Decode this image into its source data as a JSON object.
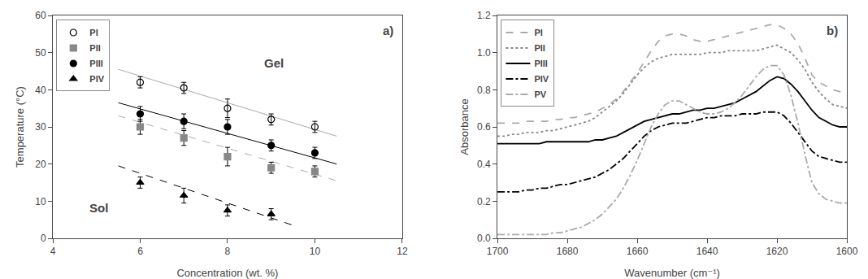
{
  "chart_data": [
    {
      "type": "scatter",
      "title": "a)",
      "x_label": "Concentration (wt. %)",
      "y_label": "Temperature (°C)",
      "xlim": [
        4,
        12
      ],
      "ylim": [
        0,
        60
      ],
      "xticks": [
        4,
        6,
        8,
        10,
        12
      ],
      "yticks": [
        0,
        10,
        20,
        30,
        40,
        50,
        60
      ],
      "grid": false,
      "legend": "upper left",
      "series": [
        {
          "name": "PI",
          "color": "black",
          "marker": "circle-open",
          "x": [
            6,
            7,
            8,
            9,
            10
          ],
          "values": [
            42.0,
            40.5,
            35.0,
            32.0,
            30.0
          ],
          "yerr": [
            1.5,
            1.5,
            2.5,
            1.5,
            1.5
          ],
          "trendline": {
            "x": [
              5.5,
              10.5
            ],
            "values": [
              45.5,
              27.5
            ],
            "color": "#aaaaaa",
            "line_style": "solid"
          }
        },
        {
          "name": "PII",
          "color": "#888888",
          "marker": "square",
          "x": [
            6,
            7,
            8,
            9,
            10
          ],
          "values": [
            30.0,
            27.0,
            22.0,
            19.0,
            18.0
          ],
          "yerr": [
            2.0,
            2.0,
            2.5,
            1.5,
            1.5
          ],
          "trendline": {
            "x": [
              5.5,
              10.5
            ],
            "values": [
              33.0,
              15.5
            ],
            "color": "#aaaaaa",
            "line_style": "dash"
          }
        },
        {
          "name": "PIII",
          "color": "black",
          "marker": "circle",
          "x": [
            6,
            7,
            8,
            9,
            10
          ],
          "values": [
            33.5,
            31.5,
            30.0,
            25.0,
            23.0
          ],
          "yerr": [
            2.0,
            2.0,
            2.0,
            1.5,
            1.5
          ],
          "trendline": {
            "x": [
              5.5,
              10.5
            ],
            "values": [
              36.5,
              20.0
            ],
            "color": "black",
            "line_style": "solid"
          }
        },
        {
          "name": "PIV",
          "color": "black",
          "marker": "triangle-up",
          "x": [
            6,
            7,
            8,
            9
          ],
          "values": [
            15.0,
            11.5,
            7.5,
            6.5
          ],
          "yerr": [
            1.5,
            2.0,
            1.5,
            1.5
          ],
          "trendline": {
            "x": [
              5.5,
              9.5
            ],
            "values": [
              19.5,
              3.5
            ],
            "color": "black",
            "line_style": "dash"
          }
        }
      ],
      "annotations": [
        {
          "text": "Gel",
          "x": 8.8,
          "y": 45.0
        },
        {
          "text": "Sol",
          "x": 4.8,
          "y": 6.0
        }
      ]
    },
    {
      "type": "line",
      "title": "b)",
      "x_label": "Wavenumber (cm⁻¹)",
      "y_label": "Absorbance",
      "xlim": [
        1700,
        1600
      ],
      "ylim": [
        0,
        1.2
      ],
      "xticks": [
        1700,
        1680,
        1660,
        1640,
        1620,
        1600
      ],
      "yticks": [
        {
          "value": 0,
          "label": "0.0"
        },
        0.2,
        0.4,
        0.6,
        0.8,
        {
          "value": 1,
          "label": "1.0"
        },
        1.2
      ],
      "grid": false,
      "legend": "upper left",
      "x": [
        1700,
        1698,
        1696,
        1694,
        1692,
        1690,
        1688,
        1686,
        1684,
        1682,
        1680,
        1678,
        1676,
        1674,
        1672,
        1670,
        1668,
        1666,
        1664,
        1662,
        1660,
        1658,
        1656,
        1654,
        1652,
        1650,
        1648,
        1646,
        1644,
        1642,
        1640,
        1638,
        1636,
        1634,
        1632,
        1630,
        1628,
        1626,
        1624,
        1622,
        1620,
        1618,
        1616,
        1614,
        1612,
        1610,
        1608,
        1606,
        1604,
        1602,
        1600
      ],
      "series": [
        {
          "name": "PI",
          "color": "#aaaaaa",
          "line_style": "dash",
          "values": [
            0.62,
            0.62,
            0.62,
            0.62,
            0.63,
            0.63,
            0.63,
            0.63,
            0.64,
            0.64,
            0.65,
            0.65,
            0.66,
            0.67,
            0.68,
            0.7,
            0.72,
            0.75,
            0.79,
            0.84,
            0.89,
            0.95,
            1.01,
            1.06,
            1.09,
            1.1,
            1.1,
            1.09,
            1.07,
            1.06,
            1.06,
            1.07,
            1.08,
            1.09,
            1.1,
            1.11,
            1.12,
            1.13,
            1.14,
            1.15,
            1.15,
            1.13,
            1.1,
            1.05,
            0.97,
            0.88,
            0.84,
            0.82,
            0.8,
            0.79,
            0.78
          ]
        },
        {
          "name": "PII",
          "color": "#888888",
          "line_style": "dot",
          "values": [
            0.55,
            0.55,
            0.56,
            0.56,
            0.57,
            0.57,
            0.57,
            0.58,
            0.58,
            0.59,
            0.6,
            0.61,
            0.62,
            0.63,
            0.65,
            0.68,
            0.71,
            0.74,
            0.78,
            0.83,
            0.88,
            0.92,
            0.95,
            0.97,
            0.98,
            0.99,
            0.99,
            0.99,
            0.99,
            0.99,
            1.0,
            1.0,
            1.0,
            1.01,
            1.01,
            1.01,
            1.01,
            1.01,
            1.02,
            1.03,
            1.04,
            1.02,
            1.0,
            0.96,
            0.91,
            0.84,
            0.79,
            0.75,
            0.72,
            0.71,
            0.7
          ]
        },
        {
          "name": "PIII",
          "color": "black",
          "line_style": "solid",
          "values": [
            0.51,
            0.51,
            0.51,
            0.51,
            0.51,
            0.51,
            0.51,
            0.52,
            0.52,
            0.52,
            0.52,
            0.52,
            0.52,
            0.52,
            0.53,
            0.53,
            0.54,
            0.55,
            0.57,
            0.59,
            0.61,
            0.63,
            0.64,
            0.65,
            0.66,
            0.67,
            0.67,
            0.68,
            0.69,
            0.69,
            0.7,
            0.7,
            0.71,
            0.72,
            0.73,
            0.75,
            0.77,
            0.79,
            0.82,
            0.85,
            0.87,
            0.86,
            0.83,
            0.79,
            0.74,
            0.69,
            0.65,
            0.63,
            0.61,
            0.6,
            0.6
          ]
        },
        {
          "name": "PIV",
          "color": "black",
          "line_style": "dashdot",
          "values": [
            0.25,
            0.25,
            0.25,
            0.25,
            0.26,
            0.26,
            0.27,
            0.27,
            0.28,
            0.29,
            0.29,
            0.3,
            0.31,
            0.32,
            0.33,
            0.35,
            0.37,
            0.4,
            0.43,
            0.47,
            0.51,
            0.55,
            0.58,
            0.6,
            0.61,
            0.62,
            0.62,
            0.62,
            0.63,
            0.64,
            0.65,
            0.65,
            0.66,
            0.66,
            0.66,
            0.67,
            0.67,
            0.67,
            0.68,
            0.68,
            0.68,
            0.66,
            0.62,
            0.57,
            0.52,
            0.47,
            0.44,
            0.43,
            0.42,
            0.41,
            0.41
          ]
        },
        {
          "name": "PV",
          "color": "#aaaaaa",
          "line_style": "dashdot",
          "values": [
            0.02,
            0.02,
            0.02,
            0.02,
            0.02,
            0.02,
            0.02,
            0.02,
            0.03,
            0.03,
            0.04,
            0.05,
            0.06,
            0.08,
            0.1,
            0.13,
            0.17,
            0.21,
            0.27,
            0.34,
            0.42,
            0.51,
            0.6,
            0.67,
            0.72,
            0.74,
            0.74,
            0.72,
            0.7,
            0.68,
            0.67,
            0.67,
            0.68,
            0.7,
            0.73,
            0.77,
            0.82,
            0.87,
            0.91,
            0.93,
            0.93,
            0.88,
            0.77,
            0.62,
            0.45,
            0.3,
            0.24,
            0.21,
            0.2,
            0.19,
            0.19
          ]
        }
      ]
    }
  ]
}
